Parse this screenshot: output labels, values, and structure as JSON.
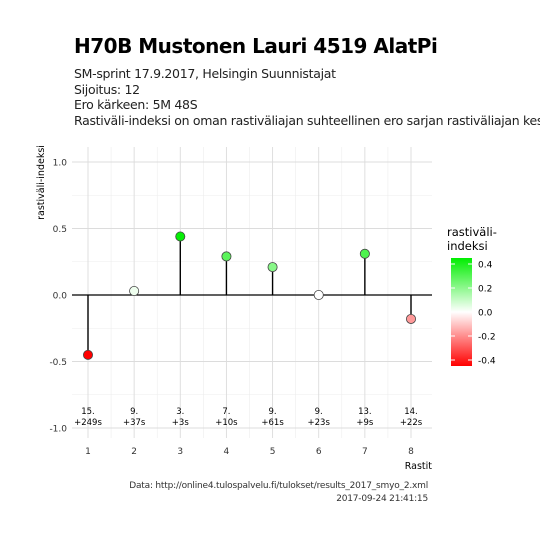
{
  "header": {
    "title": "H70B Mustonen Lauri 4519 AlatPi",
    "subtitle_lines": [
      "SM-sprint 17.9.2017, Helsingin Suunnistajat",
      "Sijoitus: 12",
      "Ero kärkeen: 5M 48S",
      "Rastiväli-indeksi on oman rastiväliajan suhteellinen ero sarjan rastiväliajan keskiar"
    ]
  },
  "caption": {
    "source": "Data: http://online4.tulospalvelu.fi/tulokset/results_2017_smyo_2.xml",
    "timestamp": "2017-09-24 21:41:15"
  },
  "chart_data": {
    "type": "scatter",
    "style": "lollipop",
    "xlabel": "Rastit",
    "ylabel": "rastiväli-indeksi",
    "x": [
      1,
      2,
      3,
      4,
      5,
      6,
      7,
      8
    ],
    "values": [
      -0.45,
      0.03,
      0.44,
      0.29,
      0.21,
      0.0,
      0.31,
      -0.18
    ],
    "ylim": [
      -1.0,
      1.0
    ],
    "xlim": [
      1,
      8
    ],
    "y_ticks": [
      1.0,
      0.5,
      0.0,
      -0.5,
      -1.0
    ],
    "y_tick_labels": [
      "1.0",
      "0.5",
      "0.0",
      "-0.5",
      "-1.0"
    ],
    "x_tick_labels": [
      "1",
      "2",
      "3",
      "4",
      "5",
      "6",
      "7",
      "8"
    ],
    "annotations": [
      {
        "rank": "15.",
        "diff": "+249s"
      },
      {
        "rank": "9.",
        "diff": "+37s"
      },
      {
        "rank": "3.",
        "diff": "+3s"
      },
      {
        "rank": "7.",
        "diff": "+10s"
      },
      {
        "rank": "9.",
        "diff": "+61s"
      },
      {
        "rank": "9.",
        "diff": "+23s"
      },
      {
        "rank": "13.",
        "diff": "+9s"
      },
      {
        "rank": "14.",
        "diff": "+22s"
      }
    ],
    "grid": true,
    "legend": {
      "title_lines": [
        "rastiväli-",
        "indeksi"
      ],
      "placement": "right",
      "tick_labels": [
        "0.4",
        "0.2",
        "0.0",
        "-0.2",
        "-0.4"
      ],
      "tick_values": [
        0.4,
        0.2,
        0.0,
        -0.2,
        -0.4
      ],
      "range": [
        -0.45,
        0.45
      ],
      "colors": {
        "high": "#00ee00",
        "mid": "#ffffff",
        "low": "#ff0000"
      }
    },
    "colors": {
      "grid_major": "#dcdcdc",
      "grid_minor": "#ededed",
      "stem": "#000000",
      "point_outline": "#444444"
    }
  }
}
